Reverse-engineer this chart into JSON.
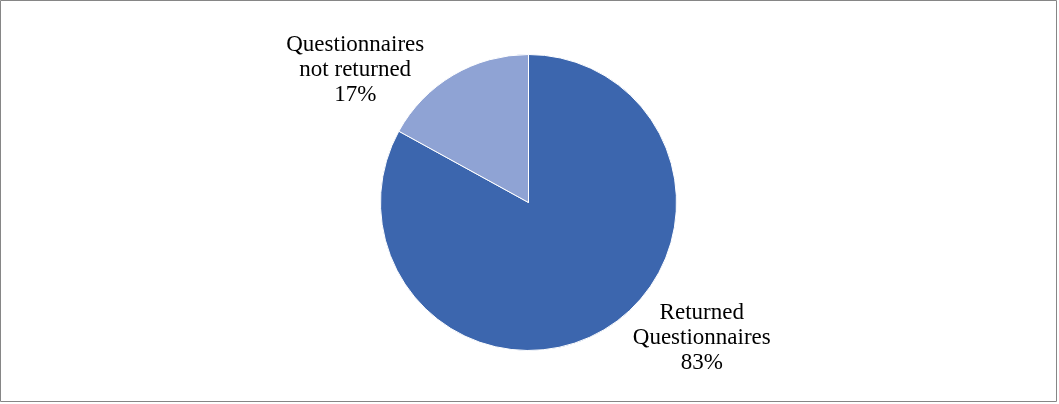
{
  "chart_data": {
    "type": "pie",
    "categories": [
      "Returned Questionnaires",
      "Questionnaires not returned"
    ],
    "values": [
      83,
      17
    ],
    "colors": [
      "#3c66ae",
      "#8fa3d4"
    ],
    "value_labels": [
      "83%",
      "17%"
    ]
  }
}
